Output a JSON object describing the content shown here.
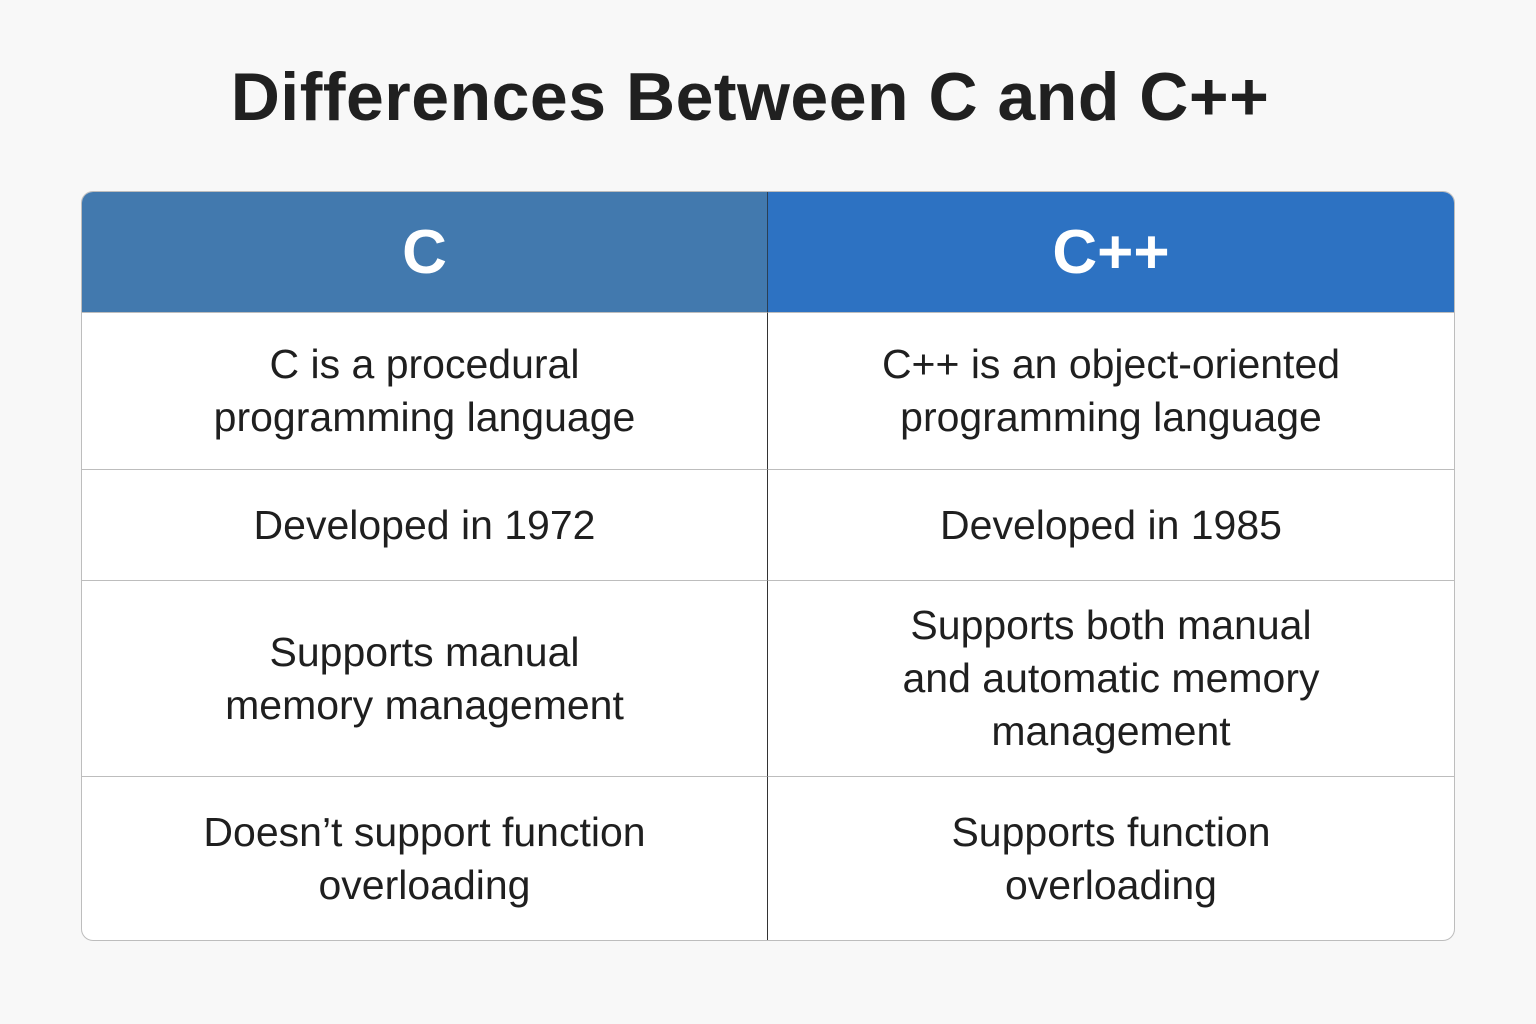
{
  "header": {
    "title": "Differences Between C and C++"
  },
  "table": {
    "headers": [
      "C",
      "C++"
    ],
    "rows": [
      [
        [
          "C is a procedural",
          "programming language"
        ],
        [
          "C++ is an object-oriented",
          "programming language"
        ]
      ],
      [
        [
          "Developed in 1972"
        ],
        [
          "Developed in 1985"
        ]
      ],
      [
        [
          "Supports manual",
          "memory management"
        ],
        [
          "Supports both manual",
          "and automatic memory",
          "management"
        ]
      ],
      [
        [
          "Doesn’t support function",
          "overloading"
        ],
        [
          "Supports function",
          "overloading"
        ]
      ]
    ]
  }
}
